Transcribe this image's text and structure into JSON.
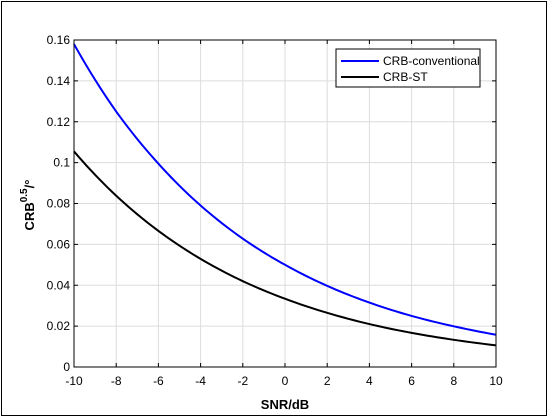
{
  "chart_data": {
    "type": "line",
    "xlabel": "SNR/dB",
    "ylabel_base": "CRB",
    "ylabel_sup": "0.5",
    "ylabel_unit": "/°",
    "xlim": [
      -10,
      10
    ],
    "ylim": [
      0,
      0.16
    ],
    "xticks": [
      -10,
      -8,
      -6,
      -4,
      -2,
      0,
      2,
      4,
      6,
      8,
      10
    ],
    "yticks": [
      0,
      0.02,
      0.04,
      0.06,
      0.08,
      0.1,
      0.12,
      0.14,
      0.16
    ],
    "ytick_labels": [
      "0",
      "0.02",
      "0.04",
      "0.06",
      "0.08",
      "0.1",
      "0.12",
      "0.14",
      "0.16"
    ],
    "grid": true,
    "legend_position": "top-right",
    "x": [
      -10,
      -8,
      -6,
      -4,
      -2,
      0,
      2,
      4,
      6,
      8,
      10
    ],
    "series": [
      {
        "name": "CRB-conventional",
        "color": "#0000ff",
        "values": [
          0.158,
          0.125,
          0.0995,
          0.079,
          0.0628,
          0.05,
          0.0397,
          0.0315,
          0.025,
          0.0199,
          0.0158
        ]
      },
      {
        "name": "CRB-ST",
        "color": "#000000",
        "values": [
          0.1055,
          0.0838,
          0.0666,
          0.0529,
          0.042,
          0.0334,
          0.0265,
          0.021,
          0.0167,
          0.0133,
          0.0106
        ]
      }
    ]
  }
}
